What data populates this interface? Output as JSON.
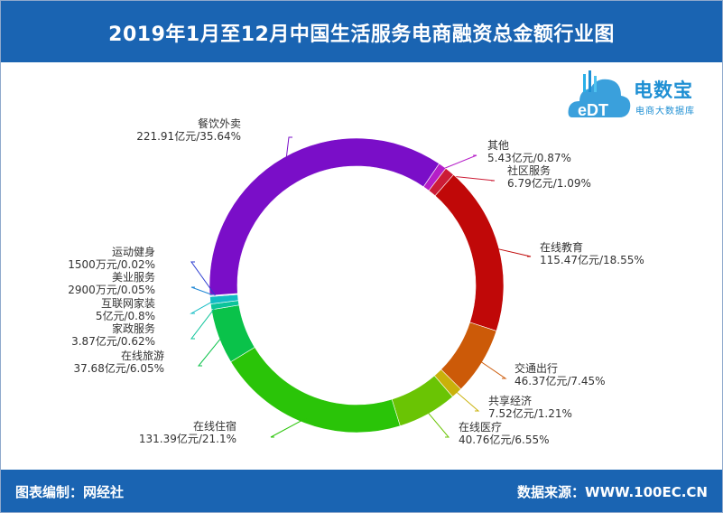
{
  "header": {
    "title": "2019年1月至12月中国生活服务电商融资总金额行业图"
  },
  "logo": {
    "brand": "电数宝",
    "subtitle": "电商大数据库",
    "mark": "eDT"
  },
  "footer": {
    "left": "图表编制：网经社",
    "right": "数据来源：WWW.100EC.CN"
  },
  "chart_data": {
    "type": "pie",
    "subtype": "donut",
    "unit": "亿元",
    "slices": [
      {
        "name": "餐饮外卖",
        "value": 221.91,
        "percent": 35.64,
        "label_value": "221.91亿元/35.64%",
        "color": "#7a0ec8"
      },
      {
        "name": "其他",
        "value": 5.43,
        "percent": 0.87,
        "label_value": "5.43亿元/0.87%",
        "color": "#b51ec8"
      },
      {
        "name": "社区服务",
        "value": 6.79,
        "percent": 1.09,
        "label_value": "6.79亿元/1.09%",
        "color": "#cc1c36"
      },
      {
        "name": "在线教育",
        "value": 115.47,
        "percent": 18.55,
        "label_value": "115.47亿元/18.55%",
        "color": "#c00808"
      },
      {
        "name": "交通出行",
        "value": 46.37,
        "percent": 7.45,
        "label_value": "46.37亿元/7.45%",
        "color": "#cc5a08"
      },
      {
        "name": "共享经济",
        "value": 7.52,
        "percent": 1.21,
        "label_value": "7.52亿元/1.21%",
        "color": "#c9b10a"
      },
      {
        "name": "在线医疗",
        "value": 40.76,
        "percent": 6.55,
        "label_value": "40.76亿元/6.55%",
        "color": "#6ac404"
      },
      {
        "name": "在线住宿",
        "value": 131.39,
        "percent": 21.1,
        "label_value": "131.39亿元/21.1%",
        "color": "#2ac408"
      },
      {
        "name": "在线旅游",
        "value": 37.68,
        "percent": 6.05,
        "label_value": "37.68亿元/6.05%",
        "color": "#0ac24a"
      },
      {
        "name": "家政服务",
        "value": 3.87,
        "percent": 0.62,
        "label_value": "3.87亿元/0.62%",
        "color": "#0cc49a"
      },
      {
        "name": "互联网家装",
        "value": 5,
        "percent": 0.8,
        "label_value": "5亿元/0.8%",
        "color": "#11bcc4"
      },
      {
        "name": "美业服务",
        "value": 0.29,
        "percent": 0.05,
        "label_value": "2900万元/0.05%",
        "color": "#1e86d4"
      },
      {
        "name": "运动健身",
        "value": 0.15,
        "percent": 0.02,
        "label_value": "1500万元/0.02%",
        "color": "#2a3bd0"
      }
    ]
  }
}
